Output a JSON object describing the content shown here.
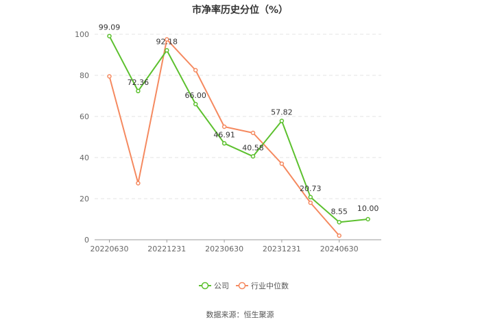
{
  "chart_data": {
    "type": "line",
    "title": "市净率历史分位（%）",
    "xlabel": "",
    "ylabel": "",
    "ylim": [
      0,
      100
    ],
    "y_ticks": [
      0,
      20,
      40,
      60,
      80,
      100
    ],
    "x_tick_labels": [
      "20220630",
      "20221231",
      "20230630",
      "20231231",
      "20240630"
    ],
    "x": [
      "20220630",
      "",
      "20221231",
      "",
      "20230630",
      "",
      "20231231",
      "",
      "20240630",
      ""
    ],
    "grid": "horizontal dashed",
    "legend_position": "bottom-center",
    "series": [
      {
        "name": "公司",
        "color": "#5cc02e",
        "values": [
          99.09,
          72.36,
          92.18,
          66.0,
          46.91,
          40.58,
          57.82,
          20.73,
          8.55,
          10.0
        ],
        "labels": [
          "99.09",
          "72.36",
          "92.18",
          "66.00",
          "46.91",
          "40.58",
          "57.82",
          "20.73",
          "8.55",
          "10.00"
        ]
      },
      {
        "name": "行业中位数",
        "color": "#f5895f",
        "values": [
          79.5,
          27.5,
          97.5,
          82.5,
          55.0,
          52.0,
          37.0,
          18.0,
          2.0,
          null
        ]
      }
    ],
    "source": "数据来源：恒生聚源"
  }
}
